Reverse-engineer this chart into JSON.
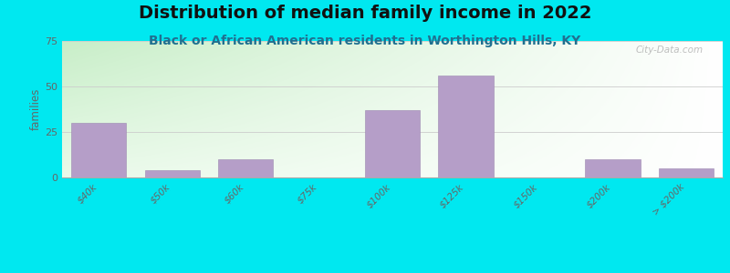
{
  "title": "Distribution of median family income in 2022",
  "subtitle": "Black or African American residents in Worthington Hills, KY",
  "ylabel": "families",
  "categories": [
    "$40k",
    "$50k",
    "$60k",
    "$75k",
    "$100k",
    "$125k",
    "$150k",
    "$200k",
    "> $200k"
  ],
  "values": [
    30,
    4,
    10,
    0,
    37,
    56,
    0,
    10,
    5
  ],
  "bar_color": "#b59ec8",
  "bar_edge_color": "#9c87b0",
  "ylim": [
    0,
    75
  ],
  "yticks": [
    0,
    25,
    50,
    75
  ],
  "background_outer": "#00e8f0",
  "plot_bg_color_topleft": "#c8eec8",
  "plot_bg_color_topright": "#e8f8f8",
  "plot_bg_color_bottomleft": "#eafaea",
  "plot_bg_color_bottomright": "#ffffff",
  "title_fontsize": 14,
  "subtitle_fontsize": 10,
  "subtitle_color": "#207090",
  "watermark": "City-Data.com",
  "grid_color": "#cccccc",
  "axis_color": "#aaaaaa",
  "tick_color": "#666666"
}
